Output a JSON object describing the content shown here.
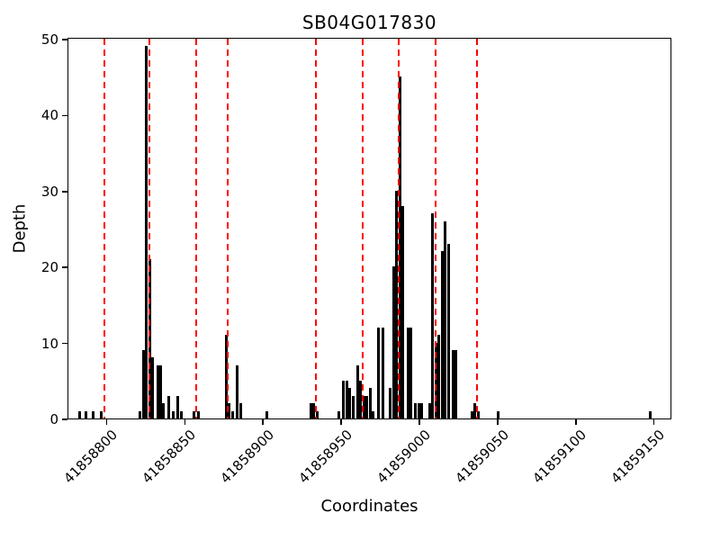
{
  "chart_data": {
    "type": "bar",
    "title": "SB04G017830",
    "xlabel": "Coordinates",
    "ylabel": "Depth",
    "xlim": [
      41858775,
      41859160
    ],
    "ylim": [
      0,
      50
    ],
    "xticks": [
      41858800,
      41858850,
      41858900,
      41858950,
      41859000,
      41859050,
      41859100,
      41859150
    ],
    "yticks": [
      0,
      10,
      20,
      30,
      40,
      50
    ],
    "grid": false,
    "legend": null,
    "bar_color": "#000000",
    "vline_color": "#ff0000",
    "vline_style": "dashed",
    "axis_color": "#000000",
    "vlines": [
      41858798,
      41858827,
      41858857,
      41858877,
      41858933,
      41858963,
      41858986,
      41859010,
      41859036
    ],
    "bars": [
      [
        41858782,
        1
      ],
      [
        41858786,
        1
      ],
      [
        41858791,
        1
      ],
      [
        41858796,
        1
      ],
      [
        41858821,
        1
      ],
      [
        41858823,
        9
      ],
      [
        41858825,
        49
      ],
      [
        41858827,
        21
      ],
      [
        41858829,
        8
      ],
      [
        41858832,
        7
      ],
      [
        41858834,
        7
      ],
      [
        41858836,
        2
      ],
      [
        41858839,
        3
      ],
      [
        41858842,
        1
      ],
      [
        41858845,
        3
      ],
      [
        41858847,
        1
      ],
      [
        41858855,
        1
      ],
      [
        41858858,
        1
      ],
      [
        41858876,
        11
      ],
      [
        41858878,
        2
      ],
      [
        41858880,
        1
      ],
      [
        41858883,
        7
      ],
      [
        41858885,
        2
      ],
      [
        41858902,
        1
      ],
      [
        41858930,
        2
      ],
      [
        41858932,
        2
      ],
      [
        41858934,
        1
      ],
      [
        41858948,
        1
      ],
      [
        41858951,
        5
      ],
      [
        41858953,
        5
      ],
      [
        41858955,
        4
      ],
      [
        41858957,
        3
      ],
      [
        41858960,
        7
      ],
      [
        41858962,
        5
      ],
      [
        41858964,
        3
      ],
      [
        41858966,
        3
      ],
      [
        41858968,
        4
      ],
      [
        41858970,
        1
      ],
      [
        41858973,
        12
      ],
      [
        41858976,
        12
      ],
      [
        41858981,
        4
      ],
      [
        41858983,
        20
      ],
      [
        41858985,
        30
      ],
      [
        41858987,
        45
      ],
      [
        41858989,
        28
      ],
      [
        41858992,
        12
      ],
      [
        41858994,
        12
      ],
      [
        41858997,
        2
      ],
      [
        41858999,
        2
      ],
      [
        41859001,
        2
      ],
      [
        41859006,
        2
      ],
      [
        41859008,
        27
      ],
      [
        41859010,
        10
      ],
      [
        41859012,
        11
      ],
      [
        41859014,
        22
      ],
      [
        41859016,
        26
      ],
      [
        41859018,
        23
      ],
      [
        41859021,
        9
      ],
      [
        41859023,
        9
      ],
      [
        41859033,
        1
      ],
      [
        41859035,
        2
      ],
      [
        41859037,
        1
      ],
      [
        41859050,
        1
      ],
      [
        41859147,
        1
      ]
    ]
  }
}
